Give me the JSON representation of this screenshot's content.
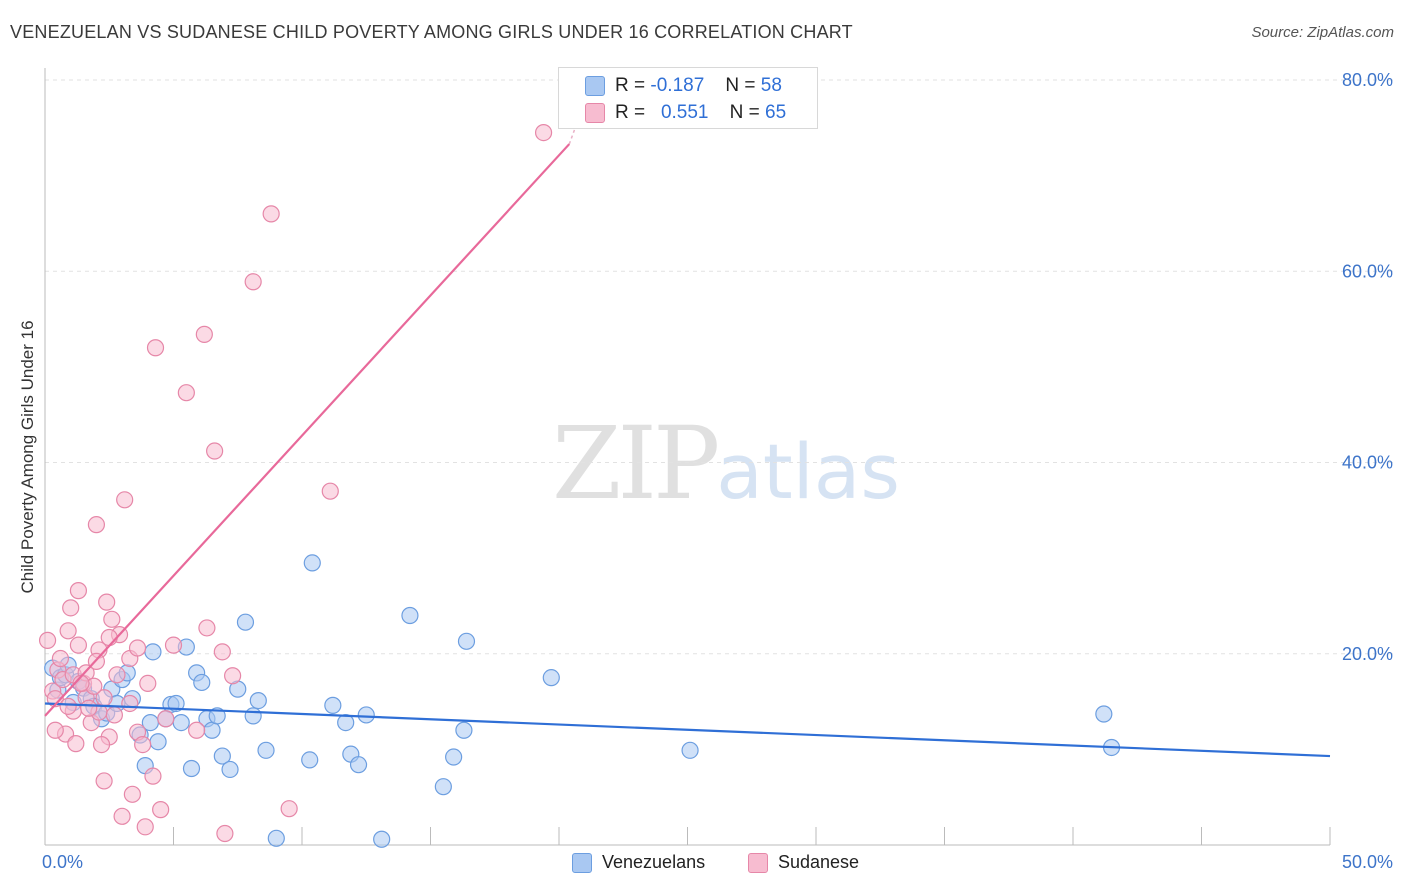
{
  "title": "VENEZUELAN VS SUDANESE CHILD POVERTY AMONG GIRLS UNDER 16 CORRELATION CHART",
  "source": "Source: ZipAtlas.com",
  "watermark": {
    "zip": "ZIP",
    "atlas": "atlas"
  },
  "legend": {
    "rows": [
      {
        "r_label": "R =",
        "r_value": "-0.187",
        "n_label": "N =",
        "n_value": "58",
        "color": "#a9c8f2",
        "stroke": "#6c9ee0"
      },
      {
        "r_label": "R =",
        "r_value": "0.551",
        "n_label": "N =",
        "n_value": "65",
        "color": "#f7bcd0",
        "stroke": "#e687a8"
      }
    ]
  },
  "bottom_legend": [
    {
      "label": "Venezuelans",
      "color": "#a9c8f2",
      "stroke": "#6c9ee0"
    },
    {
      "label": "Sudanese",
      "color": "#f7bcd0",
      "stroke": "#e687a8"
    }
  ],
  "chart_data": {
    "type": "scatter",
    "title": "VENEZUELAN VS SUDANESE CHILD POVERTY AMONG GIRLS UNDER 16 CORRELATION CHART",
    "xlabel": "",
    "ylabel": "Child Poverty Among Girls Under 16",
    "xlim": [
      0,
      50
    ],
    "ylim": [
      0,
      80
    ],
    "x_tick_labels": [
      {
        "value": 0,
        "label": "0.0%"
      },
      {
        "value": 50,
        "label": "50.0%"
      }
    ],
    "y_tick_labels": [
      {
        "value": 20,
        "label": "20.0%"
      },
      {
        "value": 40,
        "label": "40.0%"
      },
      {
        "value": 60,
        "label": "60.0%"
      },
      {
        "value": 80,
        "label": "80.0%"
      }
    ],
    "grid": true,
    "legend_position": "top-center",
    "series": [
      {
        "name": "Venezuelans",
        "color": "#6c9ee0",
        "fill": "#a9c8f2",
        "trend_color": "#2f6fd6",
        "trend": {
          "x": [
            0,
            50
          ],
          "y": [
            14.8,
            9.3
          ]
        },
        "points": [
          [
            0.3,
            18.5
          ],
          [
            0.5,
            16.2
          ],
          [
            0.6,
            17.5
          ],
          [
            0.8,
            17.8
          ],
          [
            0.9,
            18.8
          ],
          [
            1.1,
            14.9
          ],
          [
            1.3,
            17.1
          ],
          [
            1.5,
            16.4
          ],
          [
            1.8,
            15.3
          ],
          [
            1.9,
            14.5
          ],
          [
            2.2,
            13.2
          ],
          [
            2.4,
            13.8
          ],
          [
            2.6,
            16.3
          ],
          [
            2.8,
            14.8
          ],
          [
            3.0,
            17.3
          ],
          [
            3.2,
            18.0
          ],
          [
            3.4,
            15.3
          ],
          [
            3.7,
            11.5
          ],
          [
            3.9,
            8.3
          ],
          [
            4.1,
            12.8
          ],
          [
            4.2,
            20.2
          ],
          [
            4.4,
            10.8
          ],
          [
            4.7,
            13.2
          ],
          [
            4.9,
            14.7
          ],
          [
            5.1,
            14.8
          ],
          [
            5.3,
            12.8
          ],
          [
            5.5,
            20.7
          ],
          [
            5.7,
            8.0
          ],
          [
            5.9,
            18.0
          ],
          [
            6.1,
            17.0
          ],
          [
            6.3,
            13.2
          ],
          [
            6.5,
            12.0
          ],
          [
            6.7,
            13.5
          ],
          [
            6.9,
            9.3
          ],
          [
            7.2,
            7.9
          ],
          [
            7.5,
            16.3
          ],
          [
            7.8,
            23.3
          ],
          [
            8.1,
            13.5
          ],
          [
            8.3,
            15.1
          ],
          [
            8.6,
            9.9
          ],
          [
            9.0,
            0.7
          ],
          [
            10.3,
            8.9
          ],
          [
            10.4,
            29.5
          ],
          [
            11.2,
            14.6
          ],
          [
            11.7,
            12.8
          ],
          [
            11.9,
            9.5
          ],
          [
            12.2,
            8.4
          ],
          [
            12.5,
            13.6
          ],
          [
            13.1,
            0.6
          ],
          [
            14.2,
            24.0
          ],
          [
            15.5,
            6.1
          ],
          [
            15.9,
            9.2
          ],
          [
            16.3,
            12.0
          ],
          [
            16.4,
            21.3
          ],
          [
            19.7,
            17.5
          ],
          [
            25.1,
            9.9
          ],
          [
            41.2,
            13.7
          ],
          [
            41.5,
            10.2
          ]
        ]
      },
      {
        "name": "Sudanese",
        "color": "#e687a8",
        "fill": "#f7bcd0",
        "trend_color": "#e8699a",
        "trend": {
          "x": [
            0,
            20.4
          ],
          "y": [
            13.5,
            73.3
          ],
          "dash_to": [
            20.7,
            75.5
          ]
        },
        "points": [
          [
            0.1,
            21.4
          ],
          [
            0.3,
            16.1
          ],
          [
            0.4,
            15.3
          ],
          [
            0.5,
            18.3
          ],
          [
            0.7,
            17.3
          ],
          [
            0.8,
            11.6
          ],
          [
            0.9,
            22.4
          ],
          [
            1.0,
            24.8
          ],
          [
            1.1,
            14.0
          ],
          [
            1.2,
            10.6
          ],
          [
            1.3,
            26.6
          ],
          [
            1.3,
            20.9
          ],
          [
            1.5,
            16.9
          ],
          [
            1.6,
            15.4
          ],
          [
            1.8,
            12.8
          ],
          [
            2.0,
            33.5
          ],
          [
            2.1,
            20.4
          ],
          [
            2.1,
            13.9
          ],
          [
            2.3,
            15.4
          ],
          [
            2.3,
            6.7
          ],
          [
            2.4,
            25.4
          ],
          [
            2.5,
            11.3
          ],
          [
            2.6,
            23.6
          ],
          [
            2.7,
            13.6
          ],
          [
            2.8,
            17.8
          ],
          [
            2.9,
            22.0
          ],
          [
            3.0,
            3.0
          ],
          [
            3.1,
            36.1
          ],
          [
            3.3,
            19.5
          ],
          [
            3.3,
            14.8
          ],
          [
            3.4,
            5.3
          ],
          [
            3.6,
            11.8
          ],
          [
            3.9,
            1.9
          ],
          [
            4.0,
            16.9
          ],
          [
            4.2,
            7.2
          ],
          [
            4.3,
            52.0
          ],
          [
            4.5,
            3.7
          ],
          [
            4.7,
            13.2
          ],
          [
            5.0,
            20.9
          ],
          [
            5.5,
            47.3
          ],
          [
            5.9,
            12.0
          ],
          [
            6.2,
            53.4
          ],
          [
            6.3,
            22.7
          ],
          [
            6.6,
            41.2
          ],
          [
            6.9,
            20.2
          ],
          [
            7.0,
            1.2
          ],
          [
            7.3,
            17.7
          ],
          [
            8.1,
            58.9
          ],
          [
            8.8,
            66.0
          ],
          [
            9.5,
            3.8
          ],
          [
            11.1,
            37.0
          ],
          [
            19.4,
            74.5
          ],
          [
            1.1,
            17.8
          ],
          [
            1.6,
            18.0
          ],
          [
            0.9,
            14.5
          ],
          [
            2.5,
            21.7
          ],
          [
            1.9,
            16.6
          ],
          [
            3.6,
            20.6
          ],
          [
            0.4,
            12.0
          ],
          [
            2.2,
            10.5
          ],
          [
            3.8,
            10.5
          ],
          [
            1.4,
            16.9
          ],
          [
            0.6,
            19.5
          ],
          [
            2.0,
            19.2
          ],
          [
            1.7,
            14.3
          ]
        ]
      }
    ]
  }
}
